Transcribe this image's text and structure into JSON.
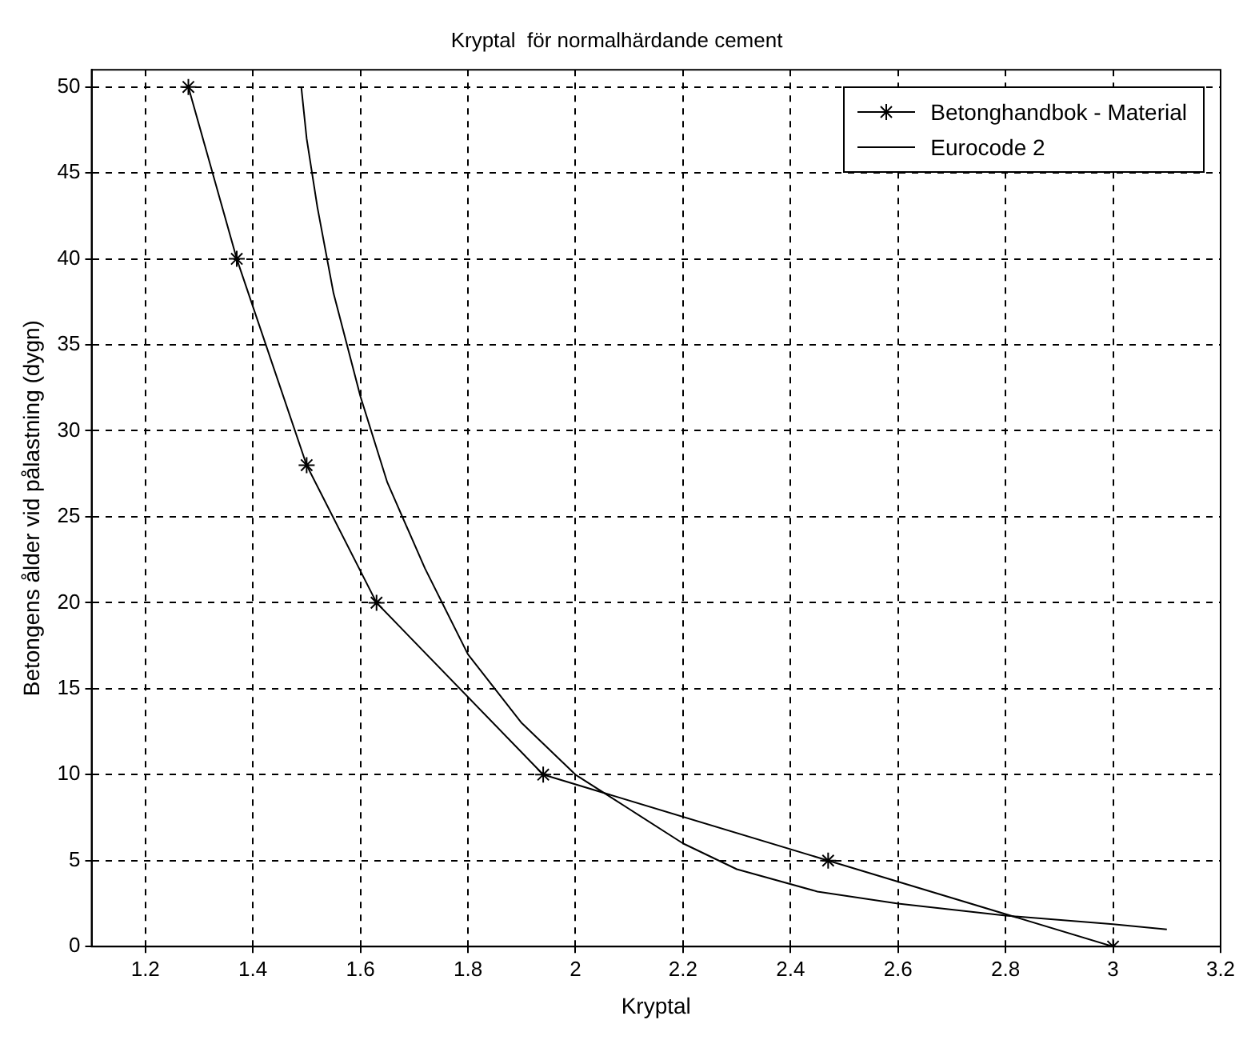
{
  "chart_data": {
    "type": "line",
    "title": "Kryptal  för normalhärdande cement",
    "xlabel": "Kryptal",
    "ylabel": "Betongens ålder vid pålastning (dygn)",
    "xlim": [
      1.1,
      3.2
    ],
    "xticks": [
      1.2,
      1.4,
      1.6,
      1.8,
      2,
      2.2,
      2.4,
      2.6,
      2.8,
      3,
      3.2
    ],
    "ylim": [
      0,
      51
    ],
    "yticks": [
      0,
      5,
      10,
      15,
      20,
      25,
      30,
      35,
      40,
      45,
      50
    ],
    "grid": true,
    "legend": "top right",
    "series": [
      {
        "name": "Betonghandbok - Material",
        "color": "#000000",
        "marker": "cross",
        "x": [
          1.28,
          1.37,
          1.5,
          1.63,
          1.94,
          2.47,
          3.0
        ],
        "values": [
          50,
          40,
          28,
          20,
          10,
          5,
          0
        ]
      },
      {
        "name": "Eurocode 2",
        "color": "#000000",
        "marker": "none",
        "x": [
          1.49,
          1.5,
          1.52,
          1.55,
          1.6,
          1.65,
          1.72,
          1.8,
          1.9,
          2.0,
          2.1,
          2.2,
          2.3,
          2.45,
          2.6,
          2.8,
          3.0,
          3.1
        ],
        "values": [
          50,
          47,
          43,
          38,
          32,
          27,
          22,
          17,
          13,
          10,
          8,
          6,
          4.5,
          3.2,
          2.5,
          1.8,
          1.3,
          1.0
        ]
      }
    ]
  }
}
